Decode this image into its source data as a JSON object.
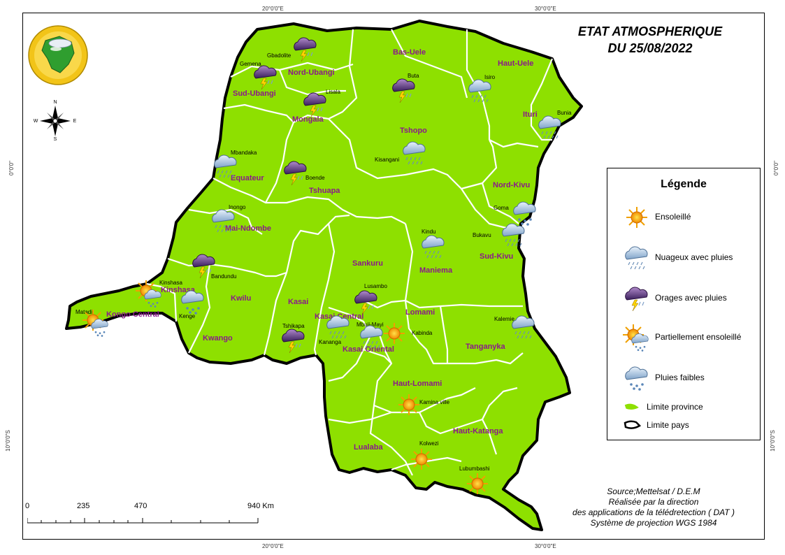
{
  "title": {
    "line1": "ETAT ATMOSPHERIQUE",
    "line2": "DU 25/08/2022"
  },
  "coords": {
    "top": [
      "20°0'0\"E",
      "30°0'0\"E"
    ],
    "bottom": [
      "20°0'0\"E",
      "30°0'0\"E"
    ],
    "left": [
      "0°0'0\"",
      "10°0'0\"S"
    ],
    "right": [
      "0°0'0\"",
      "10°0'0\"S"
    ]
  },
  "compass": {
    "n": "N",
    "s": "S",
    "e": "E",
    "w": "W"
  },
  "provinces": {
    "sud_ubangi": "Sud-Ubangi",
    "nord_ubangi": "Nord-Ubangi",
    "bas_uele": "Bas-Uele",
    "haut_uele": "Haut-Uele",
    "mongala": "Mongala",
    "tshopo": "Tshopo",
    "ituri": "Ituri",
    "equateur": "Equateur",
    "tshuapa": "Tshuapa",
    "nord_kivu": "Nord-Kivu",
    "mai_ndombe": "Mai-Ndombe",
    "sud_kivu": "Sud-Kivu",
    "sankuru": "Sankuru",
    "maniema": "Maniema",
    "kinshasa": "Kinshasa",
    "kongo_central": "Kongo Central",
    "kwilu": "Kwilu",
    "kasai": "Kasai",
    "kasai_central": "Kasai Central",
    "lomami": "Lomami",
    "kwango": "Kwango",
    "kasai_oriental": "Kasai Oriental",
    "tanganyka": "Tanganyka",
    "haut_lomami": "Haut-Lomami",
    "haut_katanga": "Haut-Katanga",
    "lualaba": "Lualaba"
  },
  "cities": {
    "gbadolite": "Gbadolite",
    "gemena": "Gemena",
    "lisala": "Lisala",
    "buta": "Buta",
    "isiro": "Isiro",
    "bunia": "Bunia",
    "kisangani": "Kisangani",
    "mbandaka": "Mbandaka",
    "boende": "Boende",
    "goma": "Goma",
    "inongo": "Inongo",
    "bukavu": "Bukavu",
    "kindu": "Kindu",
    "bandundu": "Bandundu",
    "kinshasa": "Kinshasa",
    "lusambo": "Lusambo",
    "matadi": "Matadi",
    "kenge": "Kenge",
    "tshikapa": "Tshikapa",
    "kananga": "Kananga",
    "mbuji_mayi": "Mbuji-Mayi",
    "kabinda": "Kabinda",
    "kalemie": "Kalemie",
    "kamina": "Kamina ville",
    "kolwezi": "Kolwezi",
    "lubumbashi": "Lubumbashi"
  },
  "weather": {
    "gbadolite": "storm",
    "gemena": "storm",
    "lisala": "storm",
    "buta": "storm",
    "isiro": "cloud-rain",
    "bunia": "cloud-rain",
    "kisangani": "cloud-rain",
    "mbandaka": "cloud-rain",
    "boende": "storm",
    "goma": "light-rain",
    "inongo": "cloud-rain",
    "bukavu": "cloud-rain",
    "kindu": "cloud-rain",
    "bandundu": "storm",
    "kinshasa": "partly-sunny",
    "lusambo": "storm",
    "matadi": "partly-sunny",
    "kenge": "light-rain",
    "tshikapa": "storm",
    "kananga": "cloud-rain",
    "mbuji_mayi": "cloud-rain",
    "kabinda": "sunny",
    "kalemie": "cloud-rain",
    "kamina": "sunny",
    "kolwezi": "sunny",
    "lubumbashi": "sunny"
  },
  "legend": {
    "title": "Légende",
    "items": [
      {
        "icon": "sunny",
        "label": "Ensoleillé"
      },
      {
        "icon": "cloud-rain",
        "label": "Nuageux avec pluies"
      },
      {
        "icon": "storm",
        "label": "Orages avec pluies"
      },
      {
        "icon": "partly-sunny",
        "label": "Partiellement ensoleillé"
      },
      {
        "icon": "light-rain",
        "label": "Pluies faibles"
      },
      {
        "icon": "province-limit",
        "label": "Limite province"
      },
      {
        "icon": "country-limit",
        "label": "Limite pays"
      }
    ]
  },
  "source": {
    "line1": "Source;Mettelsat / D.E.M",
    "line2": "Réalisée par la direction",
    "line3": "des applications de la télédretection ( DAT )",
    "line4": "Système de projection WGS 1984"
  },
  "scale": {
    "labels": [
      "0",
      "235",
      "470",
      "940 Km"
    ]
  },
  "colors": {
    "land": "#8ee000",
    "province_border": "#ffffff",
    "country_border": "#000000",
    "province_label": "#8a1a8a"
  }
}
